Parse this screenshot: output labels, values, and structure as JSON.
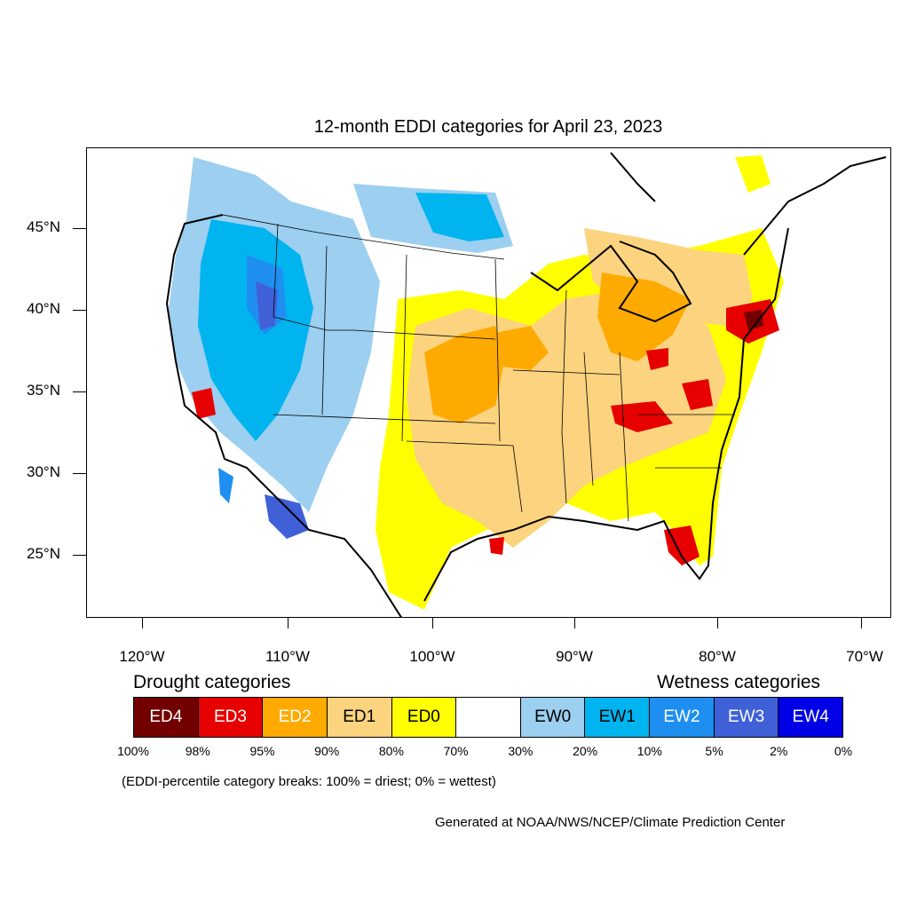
{
  "title": "12-month EDDI categories for April 23, 2023",
  "latitude_labels": [
    "45°N",
    "40°N",
    "35°N",
    "30°N",
    "25°N"
  ],
  "longitude_labels": [
    "120°W",
    "110°W",
    "100°W",
    "90°W",
    "80°W",
    "70°W"
  ],
  "legend": {
    "drought_heading": "Drought categories",
    "wetness_heading": "Wetness categories",
    "categories": [
      {
        "label": "ED4",
        "color": "#730000",
        "text_color": "#ffffff"
      },
      {
        "label": "ED3",
        "color": "#e60000",
        "text_color": "#ffffff"
      },
      {
        "label": "ED2",
        "color": "#ffaa00",
        "text_color": "#ffffff"
      },
      {
        "label": "ED1",
        "color": "#fcd37f",
        "text_color": "#000000"
      },
      {
        "label": "ED0",
        "color": "#ffff00",
        "text_color": "#000000"
      },
      {
        "label": "",
        "color": "#ffffff",
        "text_color": "#000000"
      },
      {
        "label": "EW0",
        "color": "#9ccff0",
        "text_color": "#000000"
      },
      {
        "label": "EW1",
        "color": "#00b4f0",
        "text_color": "#000000"
      },
      {
        "label": "EW2",
        "color": "#1e8ff0",
        "text_color": "#ffffff"
      },
      {
        "label": "EW3",
        "color": "#4060d8",
        "text_color": "#ffffff"
      },
      {
        "label": "EW4",
        "color": "#0000e6",
        "text_color": "#ffffff"
      }
    ],
    "percentiles": [
      "100%",
      "98%",
      "95%",
      "90%",
      "80%",
      "70%",
      "30%",
      "20%",
      "10%",
      "5%",
      "2%",
      "0%"
    ]
  },
  "breaks_note": "(EDDI-percentile category breaks: 100% = driest; 0% = wettest)",
  "credit": "Generated at NOAA/NWS/NCEP/Climate Prediction Center"
}
